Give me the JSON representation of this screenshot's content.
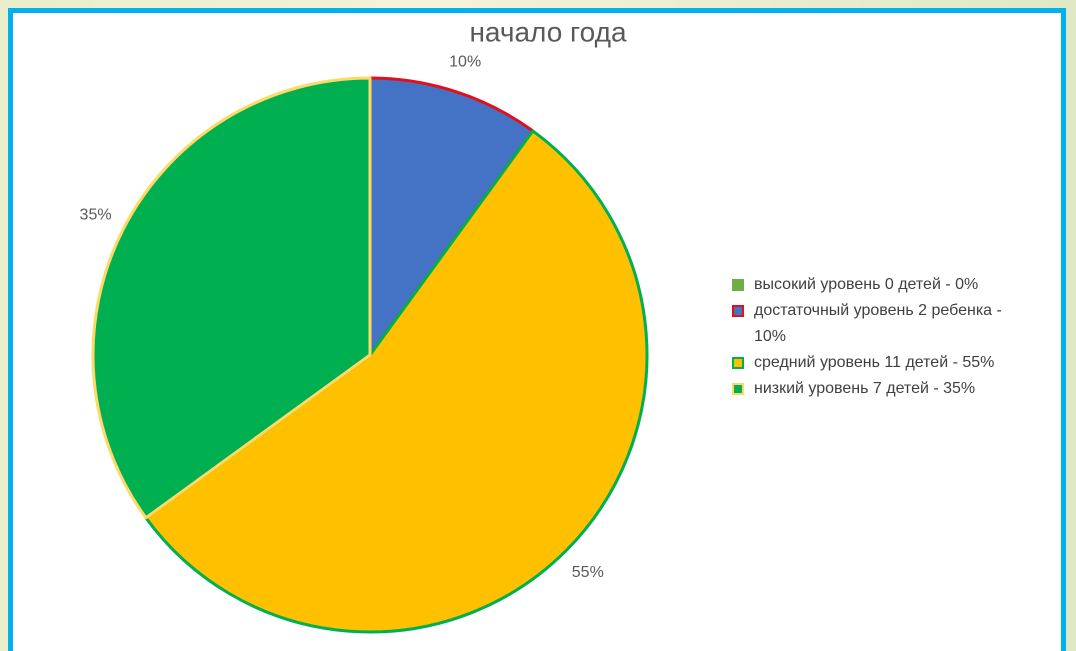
{
  "chart_data": {
    "type": "pie",
    "title": "начало года",
    "categories": [
      "высокий уровень 0 детей - 0%",
      "достаточный уровень 2 ребенка - 10%",
      "средний уровень 11 детей - 55%",
      "низкий уровень 7 детей - 35%"
    ],
    "values": [
      0,
      10,
      55,
      35
    ],
    "value_labels": [
      null,
      "10%",
      "55%",
      "35%"
    ],
    "colors": [
      "#70ad47",
      "#4472c4",
      "#ffc000",
      "#00b050"
    ],
    "edge_colors": [
      null,
      "#e3101c",
      "#00b050",
      "#ffd966"
    ],
    "legend": "right"
  }
}
